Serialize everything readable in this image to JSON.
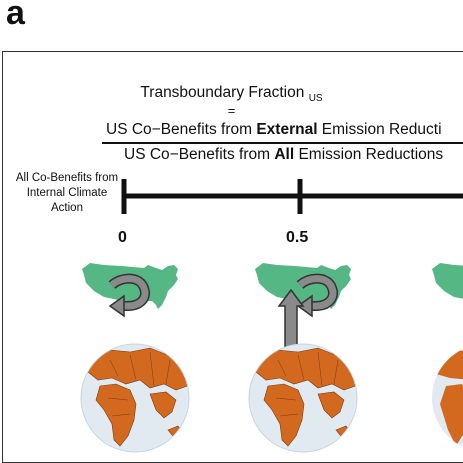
{
  "panel_label": "a",
  "title": "Transboundary Fraction",
  "title_subscript": "US",
  "equals": "=",
  "numerator": {
    "pre": "US Co−Benefits from ",
    "bold": "External",
    "post": " Emission Reducti"
  },
  "denominator": {
    "pre": "US Co−Benefits from ",
    "bold": "All",
    "post": " Emission Reductions"
  },
  "axis": {
    "left_label": "All Co-Benefits from Internal Climate Action",
    "ticks": [
      {
        "label": "0"
      },
      {
        "label": "0.5"
      }
    ]
  },
  "colors": {
    "us_map": "#55b784",
    "arrow": "#8a8a8a",
    "ocean": "#e2eaf1",
    "land": "#d2691e"
  },
  "icons": [
    "us-map-icon",
    "circular-arrow-icon",
    "upward-arrow-icon",
    "globe-icon"
  ]
}
